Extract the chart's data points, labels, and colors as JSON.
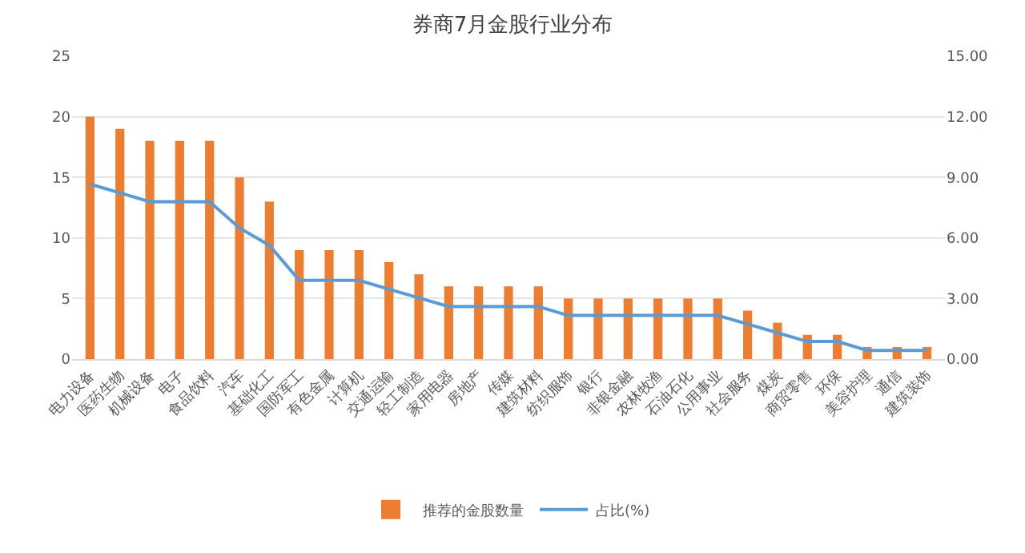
{
  "chart_data": {
    "type": "bar",
    "title": "券商7月金股行业分布",
    "categories": [
      "电力设备",
      "医药生物",
      "机械设备",
      "电子",
      "食品饮料",
      "汽车",
      "基础化工",
      "国防军工",
      "有色金属",
      "计算机",
      "交通运输",
      "轻工制造",
      "家用电器",
      "房地产",
      "传媒",
      "建筑材料",
      "纺织服饰",
      "银行",
      "非银金融",
      "农林牧渔",
      "石油石化",
      "公用事业",
      "社会服务",
      "煤炭",
      "商贸零售",
      "环保",
      "美容护理",
      "通信",
      "建筑装饰"
    ],
    "series": [
      {
        "name": "推荐的金股数量",
        "color": "#ed7d31",
        "values": [
          20,
          19,
          18,
          18,
          18,
          15,
          13,
          9,
          9,
          9,
          8,
          7,
          6,
          6,
          6,
          6,
          5,
          5,
          5,
          5,
          5,
          5,
          4,
          3,
          2,
          2,
          1,
          1,
          1
        ]
      },
      {
        "name": "占比(%)",
        "type": "line",
        "axis": "y2",
        "color": "#5b9bd5",
        "values": [
          8.66,
          8.23,
          7.79,
          7.79,
          7.79,
          6.49,
          5.63,
          3.9,
          3.9,
          3.9,
          3.46,
          3.03,
          2.6,
          2.6,
          2.6,
          2.6,
          2.16,
          2.16,
          2.16,
          2.16,
          2.16,
          2.16,
          1.73,
          1.3,
          0.87,
          0.87,
          0.43,
          0.43,
          0.43
        ]
      }
    ],
    "ylim": [
      0,
      25
    ],
    "yticks": [
      0,
      5,
      10,
      15,
      20,
      25
    ],
    "y2lim": [
      0,
      15
    ],
    "y2ticks": [
      {
        "value": 0,
        "label": "0.00"
      },
      {
        "value": 3,
        "label": "3.00"
      },
      {
        "value": 6,
        "label": "6.00"
      },
      {
        "value": 9,
        "label": "9.00"
      },
      {
        "value": 12,
        "label": "12.00"
      },
      {
        "value": 15,
        "label": "15.00"
      }
    ],
    "grid": "y",
    "legend": "bottom",
    "marker": "none"
  }
}
